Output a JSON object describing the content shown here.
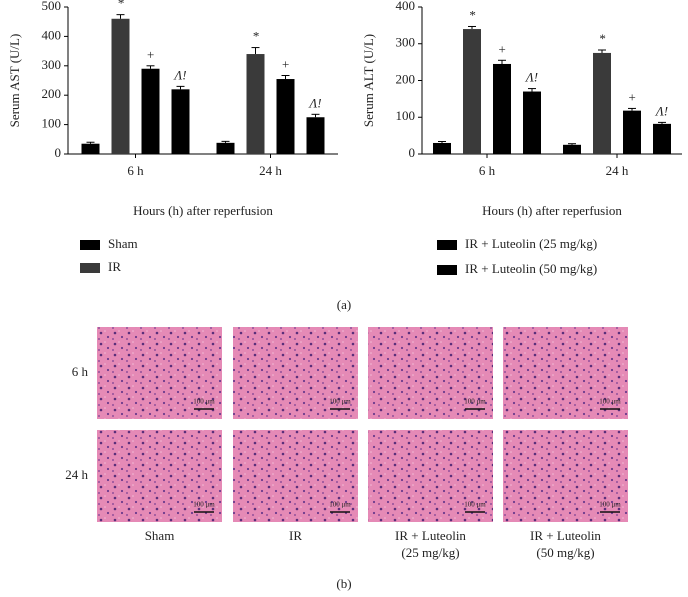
{
  "chart_data": [
    {
      "type": "bar",
      "y_label": "Serum AST (U/L)",
      "x_label": "Hours (h) after reperfusion",
      "categories": [
        "6 h",
        "24 h"
      ],
      "ylim": [
        0,
        500
      ],
      "yticks": [
        0,
        100,
        200,
        300,
        400,
        500
      ],
      "series": [
        {
          "color": "#000000",
          "values": [
            35,
            38
          ],
          "errors": [
            5,
            5
          ]
        },
        {
          "color": "#3a3a3a",
          "values": [
            460,
            340
          ],
          "errors": [
            14,
            22
          ],
          "annotations": [
            "*",
            "*"
          ]
        },
        {
          "color": "#000000",
          "values": [
            290,
            255
          ],
          "errors": [
            10,
            12
          ],
          "annotations": [
            "+",
            "+"
          ]
        },
        {
          "color": "#000000",
          "values": [
            220,
            125
          ],
          "errors": [
            10,
            10
          ],
          "annotations": [
            "Λ!",
            "Λ!"
          ]
        }
      ]
    },
    {
      "type": "bar",
      "y_label": "Serum ALT (U/L)",
      "x_label": "Hours (h) after reperfusion",
      "categories": [
        "6 h",
        "24 h"
      ],
      "ylim": [
        0,
        400
      ],
      "yticks": [
        0,
        100,
        200,
        300,
        400
      ],
      "series": [
        {
          "color": "#000000",
          "values": [
            30,
            25
          ],
          "errors": [
            4,
            3
          ]
        },
        {
          "color": "#3a3a3a",
          "values": [
            340,
            275
          ],
          "errors": [
            7,
            8
          ],
          "annotations": [
            "*",
            "*"
          ]
        },
        {
          "color": "#000000",
          "values": [
            245,
            118
          ],
          "errors": [
            10,
            6
          ],
          "annotations": [
            "+",
            "+"
          ]
        },
        {
          "color": "#000000",
          "values": [
            170,
            82
          ],
          "errors": [
            8,
            4
          ],
          "annotations": [
            "Λ!",
            "Λ!"
          ]
        }
      ]
    }
  ],
  "legend": [
    "Sham",
    "IR",
    "IR + Luteolin (25 mg/kg)",
    "IR + Luteolin (50 mg/kg)"
  ],
  "panel_labels": [
    "(a)",
    "(b)"
  ],
  "histology": {
    "rows": [
      "6 h",
      "24 h"
    ],
    "columns": [
      [
        "Sham"
      ],
      [
        "IR"
      ],
      [
        "IR + Luteolin",
        "(25 mg/kg)"
      ],
      [
        "IR + Luteolin",
        "(50 mg/kg)"
      ]
    ],
    "scale_bar": "100 μm"
  }
}
